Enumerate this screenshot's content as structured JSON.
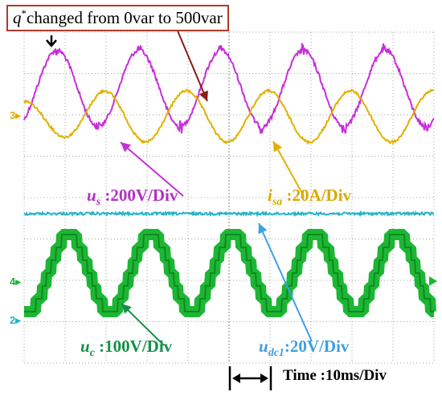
{
  "annotation": {
    "symbol": "q",
    "superscript": "*",
    "text": "changed from 0var to 500var"
  },
  "channel_markers": [
    "3",
    "4",
    "2"
  ],
  "channels": {
    "us": {
      "symbol": "u",
      "subscript": "s",
      "scale": ":200V/Div",
      "color": "#c62fd9"
    },
    "isa": {
      "symbol": "i",
      "subscript": "sa",
      "scale": ":20A/Div",
      "color": "#e3b000"
    },
    "uc": {
      "symbol": "u",
      "subscript": "c",
      "scale": ":100V/Div",
      "color": "#1db634"
    },
    "udc": {
      "symbol": "u",
      "subscript": "dc1",
      "scale": ":20V/Div",
      "color": "#24b3c8"
    }
  },
  "time_scale": "Time :10ms/Div",
  "chart_data": {
    "type": "line",
    "x": {
      "unit": "ms",
      "per_div": 10,
      "divisions": 10
    },
    "periods_visible": 5,
    "series": [
      {
        "key": "us",
        "shape": "sine",
        "amplitude_div": 2.2
      },
      {
        "key": "isa",
        "shape": "sine",
        "amplitude_div_before": 0,
        "amplitude_div_after": 0.6
      },
      {
        "key": "uc",
        "shape": "stepped-sine",
        "amplitude_div": 1.0
      },
      {
        "key": "udc",
        "shape": "dc",
        "ripple_div": 0.05
      }
    ],
    "event": {
      "label_key": "annotation",
      "change": "q* from 0 var to 500 var"
    },
    "grid": "dotted"
  }
}
